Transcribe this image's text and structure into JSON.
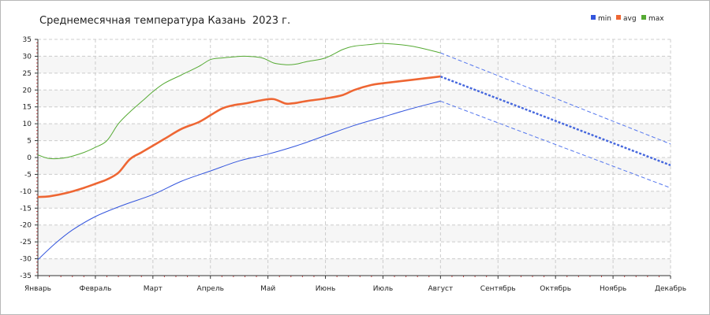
{
  "chart_data": {
    "type": "line",
    "title": "Среднемесячная температура Казань  2023 г.",
    "xlabel": "",
    "ylabel": "",
    "ylim": [
      -35,
      35
    ],
    "yticks": [
      -35,
      -30,
      -25,
      -20,
      -15,
      -10,
      -5,
      0,
      5,
      10,
      15,
      20,
      25,
      30,
      35
    ],
    "categories": [
      "Январь",
      "Февраль",
      "Март",
      "Апрель",
      "Май",
      "Июнь",
      "Июль",
      "Август",
      "Сентябрь",
      "Октябрь",
      "Ноябрь",
      "Декабрь"
    ],
    "grid": true,
    "legend_position": "top-right",
    "series": [
      {
        "name": "min",
        "color": "#3355dd",
        "x": [
          0,
          0.3,
          0.6,
          1.0,
          1.5,
          2.0,
          2.5,
          3.0,
          3.5,
          4.0,
          4.5,
          5.0,
          5.5,
          6.0,
          6.5,
          7.0
        ],
        "values": [
          -30.3,
          -25.5,
          -21.5,
          -17.5,
          -14,
          -11,
          -7,
          -4,
          -1,
          1,
          3.5,
          6.5,
          9.5,
          12,
          14.5,
          16.7
        ],
        "forecast_x": [
          7,
          11
        ],
        "forecast_values": [
          16.7,
          -9
        ]
      },
      {
        "name": "avg",
        "color": "#ee6633",
        "x": [
          0,
          0.2,
          0.5,
          0.8,
          1.0,
          1.2,
          1.4,
          1.6,
          1.8,
          2.0,
          2.2,
          2.5,
          2.8,
          3.0,
          3.2,
          3.4,
          3.6,
          3.9,
          4.1,
          4.3,
          4.4,
          4.5,
          4.7,
          5.0,
          5.3,
          5.5,
          5.8,
          6.0,
          6.5,
          7.0
        ],
        "values": [
          -11.7,
          -11.5,
          -10.5,
          -9,
          -7.8,
          -6.5,
          -4.5,
          -0.5,
          1.5,
          3.5,
          5.5,
          8.5,
          10.5,
          12.5,
          14.5,
          15.5,
          16,
          17,
          17.3,
          16,
          16,
          16.2,
          16.8,
          17.5,
          18.5,
          20,
          21.5,
          22,
          23,
          24
        ],
        "forecast_x": [
          7,
          11
        ],
        "forecast_values": [
          24,
          -2.3
        ]
      },
      {
        "name": "max",
        "color": "#55aa33",
        "x": [
          0,
          0.2,
          0.5,
          0.8,
          1.0,
          1.2,
          1.4,
          1.6,
          1.8,
          2.0,
          2.2,
          2.5,
          2.8,
          3.0,
          3.2,
          3.4,
          3.6,
          3.9,
          4.1,
          4.3,
          4.4,
          4.5,
          4.7,
          5.0,
          5.3,
          5.5,
          5.8,
          6.0,
          6.5,
          7.0
        ],
        "values": [
          0.8,
          -0.3,
          0,
          1.5,
          3,
          5,
          10,
          13.5,
          16.5,
          19.5,
          22,
          24.5,
          27,
          29,
          29.5,
          29.8,
          30,
          29.5,
          28,
          27.5,
          27.5,
          27.7,
          28.5,
          29.5,
          32,
          33,
          33.5,
          33.8,
          33,
          31
        ],
        "forecast_x": [
          7,
          11
        ],
        "forecast_values": [
          31,
          4
        ]
      }
    ]
  }
}
